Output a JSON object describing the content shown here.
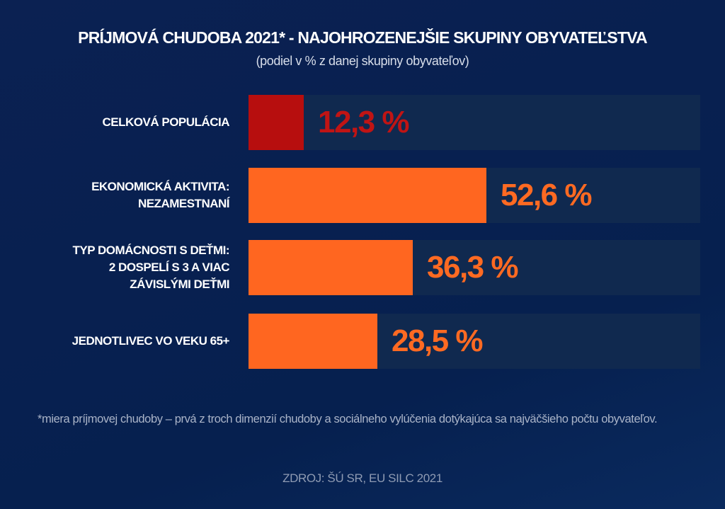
{
  "header": {
    "title": "PRÍJMOVÁ CHUDOBA 2021* - NAJOHROZENEJŠIE SKUPINY OBYVATEĽSTVA",
    "subtitle": "(podiel v % z danej skupiny obyvateľov)"
  },
  "rows": [
    {
      "label_lines": [
        "CELKOVÁ POPULÁCIA"
      ],
      "value": 12.3,
      "value_label": "12,3 %",
      "color": "#b70e0e",
      "text_color": "#c01414"
    },
    {
      "label_lines": [
        "EKONOMICKÁ AKTIVITA:",
        "NEZAMESTNANÍ"
      ],
      "value": 52.6,
      "value_label": "52,6 %",
      "color": "#ff6620",
      "text_color": "#ff6a22"
    },
    {
      "label_lines": [
        "TYP DOMÁCNOSTI S DEŤMI:",
        "2 DOSPELÍ S 3 A VIAC",
        "ZÁVISLÝMI DEŤMI"
      ],
      "value": 36.3,
      "value_label": "36,3 %",
      "color": "#ff6620",
      "text_color": "#ff6a22"
    },
    {
      "label_lines": [
        "JEDNOTLIVEC VO VEKU 65+"
      ],
      "value": 28.5,
      "value_label": "28,5 %",
      "color": "#ff6620",
      "text_color": "#ff6a22"
    }
  ],
  "footnote": "*miera príjmovej chudoby – prvá z troch dimenzií chudoby a sociálneho vylúčenia dotýkajúca sa najväčšieho počtu obyvateľov.",
  "source": "ZDROJ: ŠÚ SR, EU SILC 2021",
  "colors": {
    "background": "#082050",
    "track": "#10294f",
    "highlight_red": "#b70e0e",
    "accent_orange": "#ff6620"
  },
  "chart_data": {
    "type": "bar",
    "orientation": "horizontal",
    "title": "PRÍJMOVÁ CHUDOBA 2021* - NAJOHROZENEJŠIE SKUPINY OBYVATEĽSTVA",
    "subtitle": "(podiel v % z danej skupiny obyvateľov)",
    "categories": [
      "CELKOVÁ POPULÁCIA",
      "EKONOMICKÁ AKTIVITA: NEZAMESTNANÍ",
      "TYP DOMÁCNOSTI S DEŤMI: 2 DOSPELÍ S 3 A VIAC ZÁVISLÝMI DEŤMI",
      "JEDNOTLIVEC VO VEKU 65+"
    ],
    "values": [
      12.3,
      52.6,
      36.3,
      28.5
    ],
    "data_labels": [
      "12,3 %",
      "52,6 %",
      "36,3 %",
      "28,5 %"
    ],
    "xlabel": "",
    "ylabel": "",
    "xlim": [
      0,
      100
    ],
    "grid": false,
    "legend": null,
    "annotations": [
      "*miera príjmovej chudoby – prvá z troch dimenzií chudoby a sociálneho vylúčenia dotýkajúca sa najväčšieho počtu obyvateľov.",
      "ZDROJ: ŠÚ SR, EU SILC 2021"
    ]
  }
}
